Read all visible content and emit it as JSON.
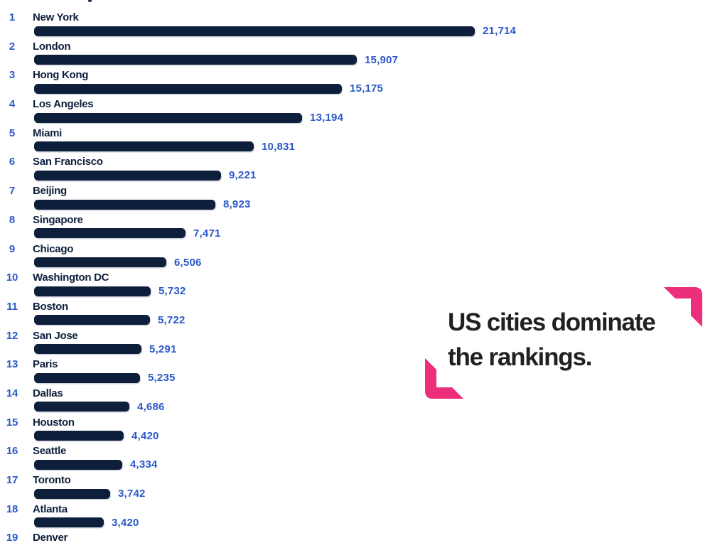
{
  "page": {
    "background": "#FFFFFF"
  },
  "colors": {
    "bar": "#0E1F3C",
    "city_label": "#0E1F3C",
    "rank_and_value": "#2A58C8",
    "accent_pink": "#EC2E7B",
    "annotation_text": "#232021"
  },
  "annotation": {
    "line1": "US cities dominate",
    "line2": "the rankings."
  },
  "chart_data": {
    "type": "bar",
    "orientation": "horizontal",
    "grid": false,
    "legend": false,
    "xlim": [
      0,
      21714
    ],
    "value_max": 21714,
    "annotation": "US cities dominate the rankings.",
    "rows": [
      {
        "rank": 1,
        "city": "New York",
        "value": 21714,
        "label": "21,714"
      },
      {
        "rank": 2,
        "city": "London",
        "value": 15907,
        "label": "15,907"
      },
      {
        "rank": 3,
        "city": "Hong Kong",
        "value": 15175,
        "label": "15,175"
      },
      {
        "rank": 4,
        "city": "Los Angeles",
        "value": 13194,
        "label": "13,194"
      },
      {
        "rank": 5,
        "city": "Miami",
        "value": 10831,
        "label": "10,831"
      },
      {
        "rank": 6,
        "city": "San Francisco",
        "value": 9221,
        "label": "9,221"
      },
      {
        "rank": 7,
        "city": "Beijing",
        "value": 8923,
        "label": "8,923"
      },
      {
        "rank": 8,
        "city": "Singapore",
        "value": 7471,
        "label": "7,471"
      },
      {
        "rank": 9,
        "city": "Chicago",
        "value": 6506,
        "label": "6,506"
      },
      {
        "rank": 10,
        "city": "Washington DC",
        "value": 5732,
        "label": "5,732"
      },
      {
        "rank": 11,
        "city": "Boston",
        "value": 5722,
        "label": "5,722"
      },
      {
        "rank": 12,
        "city": "San Jose",
        "value": 5291,
        "label": "5,291"
      },
      {
        "rank": 13,
        "city": "Paris",
        "value": 5235,
        "label": "5,235"
      },
      {
        "rank": 14,
        "city": "Dallas",
        "value": 4686,
        "label": "4,686"
      },
      {
        "rank": 15,
        "city": "Houston",
        "value": 4420,
        "label": "4,420"
      },
      {
        "rank": 16,
        "city": "Seattle",
        "value": 4334,
        "label": "4,334"
      },
      {
        "rank": 17,
        "city": "Toronto",
        "value": 3742,
        "label": "3,742"
      },
      {
        "rank": 18,
        "city": "Atlanta",
        "value": 3420,
        "label": "3,420"
      },
      {
        "rank": 19,
        "city": "Denver",
        "value": null,
        "label": ""
      }
    ]
  }
}
